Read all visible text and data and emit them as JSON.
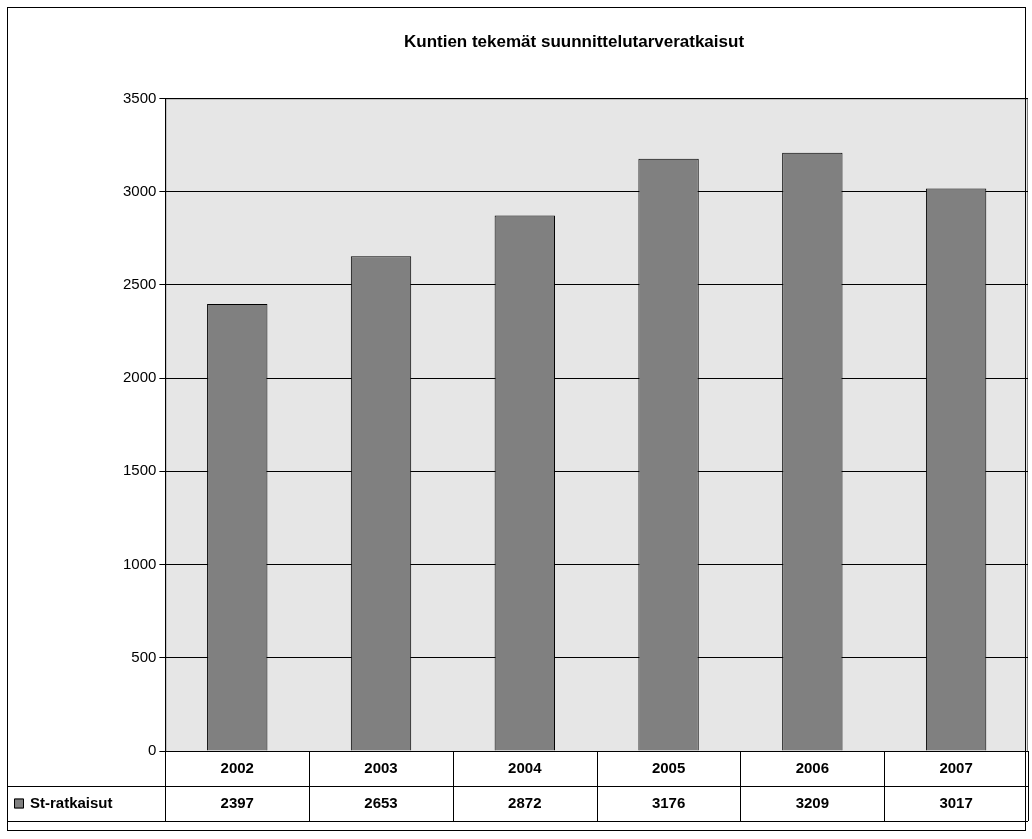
{
  "chart_data": {
    "type": "bar",
    "title": "Kuntien tekemät suunnittelutarveratkaisut",
    "categories": [
      "2002",
      "2003",
      "2004",
      "2005",
      "2006",
      "2007"
    ],
    "series": [
      {
        "name": "St-ratkaisut",
        "color": "#808080",
        "values": [
          2397,
          2653,
          2872,
          3176,
          3209,
          3017
        ]
      }
    ],
    "ylim": [
      0,
      3500
    ],
    "yticks": [
      0,
      500,
      1000,
      1500,
      2000,
      2500,
      3000,
      3500
    ],
    "grid": "y",
    "legend": "bottom",
    "data_labels": true
  }
}
